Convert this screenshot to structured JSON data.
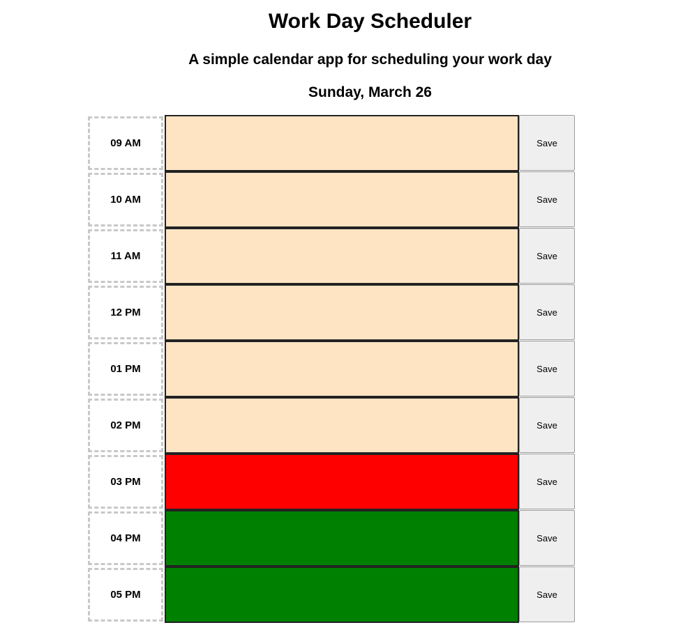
{
  "header": {
    "title": "Work Day Scheduler",
    "subtitle": "A simple calendar app for scheduling your work day",
    "date": "Sunday, March 26"
  },
  "colors": {
    "future": "#ffe4c4",
    "present": "#ff0000",
    "past": "#008000"
  },
  "timeblocks": [
    {
      "hour": "09 AM",
      "status": "future",
      "text": "",
      "save_label": "Save"
    },
    {
      "hour": "10 AM",
      "status": "future",
      "text": "",
      "save_label": "Save"
    },
    {
      "hour": "11 AM",
      "status": "future",
      "text": "",
      "save_label": "Save"
    },
    {
      "hour": "12 PM",
      "status": "future",
      "text": "",
      "save_label": "Save"
    },
    {
      "hour": "01 PM",
      "status": "future",
      "text": "",
      "save_label": "Save"
    },
    {
      "hour": "02 PM",
      "status": "future",
      "text": "",
      "save_label": "Save"
    },
    {
      "hour": "03 PM",
      "status": "present",
      "text": "",
      "save_label": "Save"
    },
    {
      "hour": "04 PM",
      "status": "past",
      "text": "",
      "save_label": "Save"
    },
    {
      "hour": "05 PM",
      "status": "past",
      "text": "",
      "save_label": "Save"
    }
  ]
}
